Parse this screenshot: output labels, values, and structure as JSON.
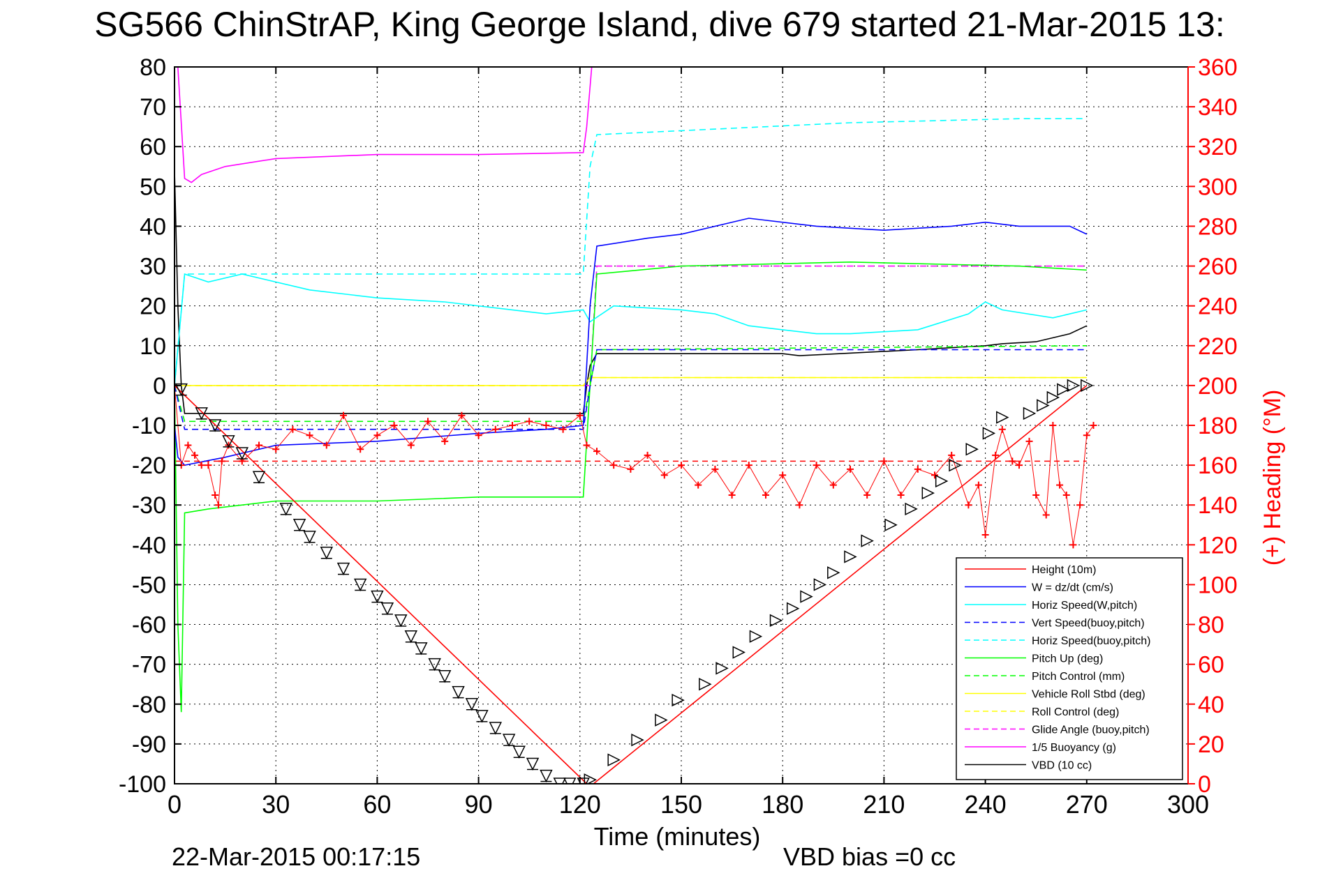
{
  "title": "SG566 ChinStrAP, King George Island, dive 679 started 21-Mar-2015 13:",
  "footer": {
    "timestamp": "22-Mar-2015 00:17:15",
    "vbd_bias": "VBD bias =0 cc"
  },
  "chart_data": {
    "type": "line",
    "xlabel": "Time (minutes)",
    "ylabel": "",
    "y2label": "(+) Heading (°M)",
    "xlim": [
      0,
      300
    ],
    "ylim": [
      -100,
      80
    ],
    "y2lim": [
      0,
      360
    ],
    "x_ticks": [
      0,
      30,
      60,
      90,
      120,
      150,
      180,
      210,
      240,
      270,
      300
    ],
    "y_ticks": [
      80,
      70,
      60,
      50,
      40,
      30,
      20,
      10,
      0,
      -10,
      -20,
      -30,
      -40,
      -50,
      -60,
      -70,
      -80,
      -90,
      -100
    ],
    "y2_ticks": [
      360,
      340,
      320,
      300,
      280,
      260,
      240,
      220,
      200,
      180,
      160,
      140,
      120,
      100,
      80,
      60,
      40,
      20,
      0
    ],
    "grid": true,
    "legend_position": "bottom-right",
    "colors": {
      "red": "#ff0000",
      "blue": "#0000ff",
      "cyan": "#00ffff",
      "green": "#00ff00",
      "yellow": "#ffff00",
      "magenta": "#ff00ff",
      "black": "#000000"
    },
    "series": [
      {
        "name": "Height (10m)",
        "color": "#ff0000",
        "style": "solid",
        "x": [
          0,
          122,
          124,
          270
        ],
        "values": [
          0,
          -100,
          -100,
          0
        ]
      },
      {
        "name": "W = dz/dt (cm/s)",
        "color": "#0000ff",
        "style": "solid",
        "x": [
          0,
          1,
          3,
          15,
          30,
          60,
          90,
          110,
          121,
          123,
          125,
          140,
          150,
          170,
          190,
          210,
          230,
          240,
          250,
          265,
          270
        ],
        "values": [
          -10,
          -18,
          -20,
          -18,
          -15,
          -14,
          -12,
          -11,
          -10,
          20,
          35,
          37,
          38,
          42,
          40,
          39,
          40,
          41,
          40,
          40,
          38
        ]
      },
      {
        "name": "Horiz Speed(W,pitch)",
        "color": "#00ffff",
        "style": "solid",
        "x": [
          0,
          3,
          10,
          20,
          40,
          60,
          80,
          100,
          110,
          121,
          123,
          130,
          150,
          160,
          170,
          180,
          190,
          200,
          220,
          235,
          240,
          245,
          260,
          270
        ],
        "values": [
          0,
          28,
          26,
          28,
          24,
          22,
          21,
          19,
          18,
          19,
          16,
          20,
          19,
          18,
          15,
          14,
          13,
          13,
          14,
          18,
          21,
          19,
          17,
          19
        ]
      },
      {
        "name": "Vert Speed(buoy,pitch)",
        "color": "#0000ff",
        "style": "dashed",
        "x": [
          0,
          3,
          121,
          123,
          125,
          270
        ],
        "values": [
          0,
          -11,
          -11,
          0,
          9,
          9
        ]
      },
      {
        "name": "Horiz Speed(buoy,pitch)",
        "color": "#00ffff",
        "style": "dashed",
        "x": [
          0,
          3,
          121,
          123,
          125,
          150,
          200,
          250,
          270
        ],
        "values": [
          0,
          28,
          28,
          55,
          63,
          64,
          66,
          67,
          67
        ]
      },
      {
        "name": "Pitch Up (deg)",
        "color": "#00ff00",
        "style": "solid",
        "x": [
          0,
          1,
          2,
          3,
          10,
          30,
          60,
          90,
          121,
          123,
          125,
          150,
          200,
          250,
          270
        ],
        "values": [
          0,
          -60,
          -82,
          -32,
          -31,
          -29,
          -29,
          -28,
          -28,
          0,
          28,
          30,
          31,
          30,
          29
        ]
      },
      {
        "name": "Pitch Control (mm)",
        "color": "#00ff00",
        "style": "dashed",
        "x": [
          0,
          3,
          121,
          123,
          125,
          270
        ],
        "values": [
          0,
          -9,
          -9,
          0,
          9,
          10
        ]
      },
      {
        "name": "Vehicle Roll Stbd (deg)",
        "color": "#ffff00",
        "style": "solid",
        "x": [
          0,
          3,
          121,
          123,
          270
        ],
        "values": [
          0,
          0,
          0,
          2,
          2
        ]
      },
      {
        "name": "Roll Control (deg)",
        "color": "#ffff00",
        "style": "dashed",
        "x": [
          0,
          3,
          121,
          123,
          270
        ],
        "values": [
          0,
          0,
          0,
          2,
          2
        ]
      },
      {
        "name": "Glide Angle (buoy,pitch)",
        "color": "#ff00ff",
        "style": "dashed",
        "x": [
          0,
          3,
          121,
          123,
          125,
          270
        ],
        "values": [
          0,
          0,
          0,
          0,
          30,
          30
        ]
      },
      {
        "name": "1/5 Buoyancy (g)",
        "color": "#ff00ff",
        "style": "solid",
        "x": [
          0,
          1,
          3,
          5,
          8,
          15,
          30,
          60,
          90,
          121,
          122,
          123.5
        ],
        "values": [
          80,
          80,
          52,
          51,
          53,
          55,
          57,
          58,
          58,
          58.5,
          65,
          80
        ]
      },
      {
        "name": "VBD (10 cc)",
        "color": "#000000",
        "style": "solid",
        "x": [
          0,
          1,
          2,
          3,
          10,
          121,
          122,
          123,
          125,
          180,
          185,
          220,
          240,
          245,
          255,
          260,
          265,
          270
        ],
        "values": [
          54,
          20,
          0,
          -7,
          -7,
          -7,
          0,
          5,
          8,
          8,
          7.5,
          9,
          10,
          10.5,
          11,
          12,
          13,
          15
        ]
      }
    ],
    "heading_series": {
      "name": "Heading",
      "color": "#ff0000",
      "marker": "+",
      "x": [
        0,
        2,
        4,
        6,
        8,
        10,
        12,
        13,
        14,
        16,
        20,
        25,
        30,
        35,
        40,
        45,
        50,
        55,
        60,
        65,
        70,
        75,
        80,
        85,
        90,
        95,
        100,
        105,
        110,
        115,
        120,
        122,
        125,
        130,
        135,
        140,
        145,
        150,
        155,
        160,
        165,
        170,
        175,
        180,
        185,
        190,
        195,
        200,
        205,
        210,
        215,
        220,
        225,
        230,
        235,
        238,
        240,
        243,
        245,
        248,
        250,
        253,
        255,
        258,
        260,
        262,
        264,
        266,
        268,
        270,
        272
      ],
      "values": [
        200,
        160,
        170,
        165,
        160,
        160,
        145,
        140,
        162,
        170,
        162,
        170,
        168,
        178,
        175,
        170,
        185,
        168,
        175,
        180,
        170,
        182,
        172,
        185,
        175,
        178,
        180,
        182,
        180,
        178,
        185,
        170,
        167,
        160,
        158,
        165,
        155,
        160,
        150,
        158,
        145,
        160,
        145,
        155,
        140,
        160,
        150,
        158,
        145,
        162,
        145,
        158,
        155,
        165,
        140,
        150,
        125,
        165,
        178,
        162,
        160,
        172,
        145,
        135,
        180,
        150,
        145,
        120,
        140,
        175,
        180
      ]
    },
    "heading_reference": {
      "name": "",
      "color": "#ff0000",
      "style": "dashed",
      "value": 162
    },
    "height_markers": {
      "marker": "triangle",
      "x": [
        2,
        8,
        12,
        16,
        20,
        25,
        33,
        37,
        40,
        45,
        50,
        55,
        60,
        63,
        67,
        70,
        73,
        77,
        80,
        84,
        88,
        91,
        95,
        99,
        102,
        106,
        110,
        114,
        117,
        121,
        123,
        130,
        137,
        144,
        149,
        157,
        162,
        167,
        172,
        178,
        183,
        187,
        191,
        195,
        200,
        205,
        212,
        218,
        223,
        227,
        231,
        236,
        241,
        245,
        253,
        257,
        260,
        263,
        266,
        270
      ],
      "values": [
        -1,
        -7,
        -10,
        -14,
        -17,
        -23,
        -31,
        -35,
        -38,
        -42,
        -46,
        -50,
        -53,
        -56,
        -59,
        -63,
        -66,
        -70,
        -73,
        -77,
        -80,
        -83,
        -86,
        -89,
        -92,
        -95,
        -98,
        -100,
        -100,
        -100,
        -99,
        -94,
        -89,
        -84,
        -79,
        -75,
        -71,
        -67,
        -63,
        -59,
        -56,
        -53,
        -50,
        -47,
        -43,
        -39,
        -35,
        -31,
        -27,
        -24,
        -20,
        -16,
        -12,
        -8,
        -7,
        -5,
        -3,
        -1,
        0,
        0
      ]
    }
  },
  "legend": {
    "entries": [
      {
        "label": "Height (10m)",
        "color": "#ff0000",
        "style": "solid"
      },
      {
        "label": "W = dz/dt (cm/s)",
        "color": "#0000ff",
        "style": "solid"
      },
      {
        "label": "Horiz Speed(W,pitch)",
        "color": "#00ffff",
        "style": "solid"
      },
      {
        "label": "Vert Speed(buoy,pitch)",
        "color": "#0000ff",
        "style": "dashed"
      },
      {
        "label": "Horiz Speed(buoy,pitch)",
        "color": "#00ffff",
        "style": "dashed"
      },
      {
        "label": "Pitch Up (deg)",
        "color": "#00ff00",
        "style": "solid"
      },
      {
        "label": "Pitch Control (mm)",
        "color": "#00ff00",
        "style": "dashed"
      },
      {
        "label": "Vehicle Roll Stbd (deg)",
        "color": "#ffff00",
        "style": "solid"
      },
      {
        "label": "Roll Control (deg)",
        "color": "#ffff00",
        "style": "dashed"
      },
      {
        "label": "Glide Angle (buoy,pitch)",
        "color": "#ff00ff",
        "style": "dashed"
      },
      {
        "label": "1/5 Buoyancy (g)",
        "color": "#ff00ff",
        "style": "solid"
      },
      {
        "label": "VBD (10 cc)",
        "color": "#000000",
        "style": "solid"
      }
    ]
  }
}
